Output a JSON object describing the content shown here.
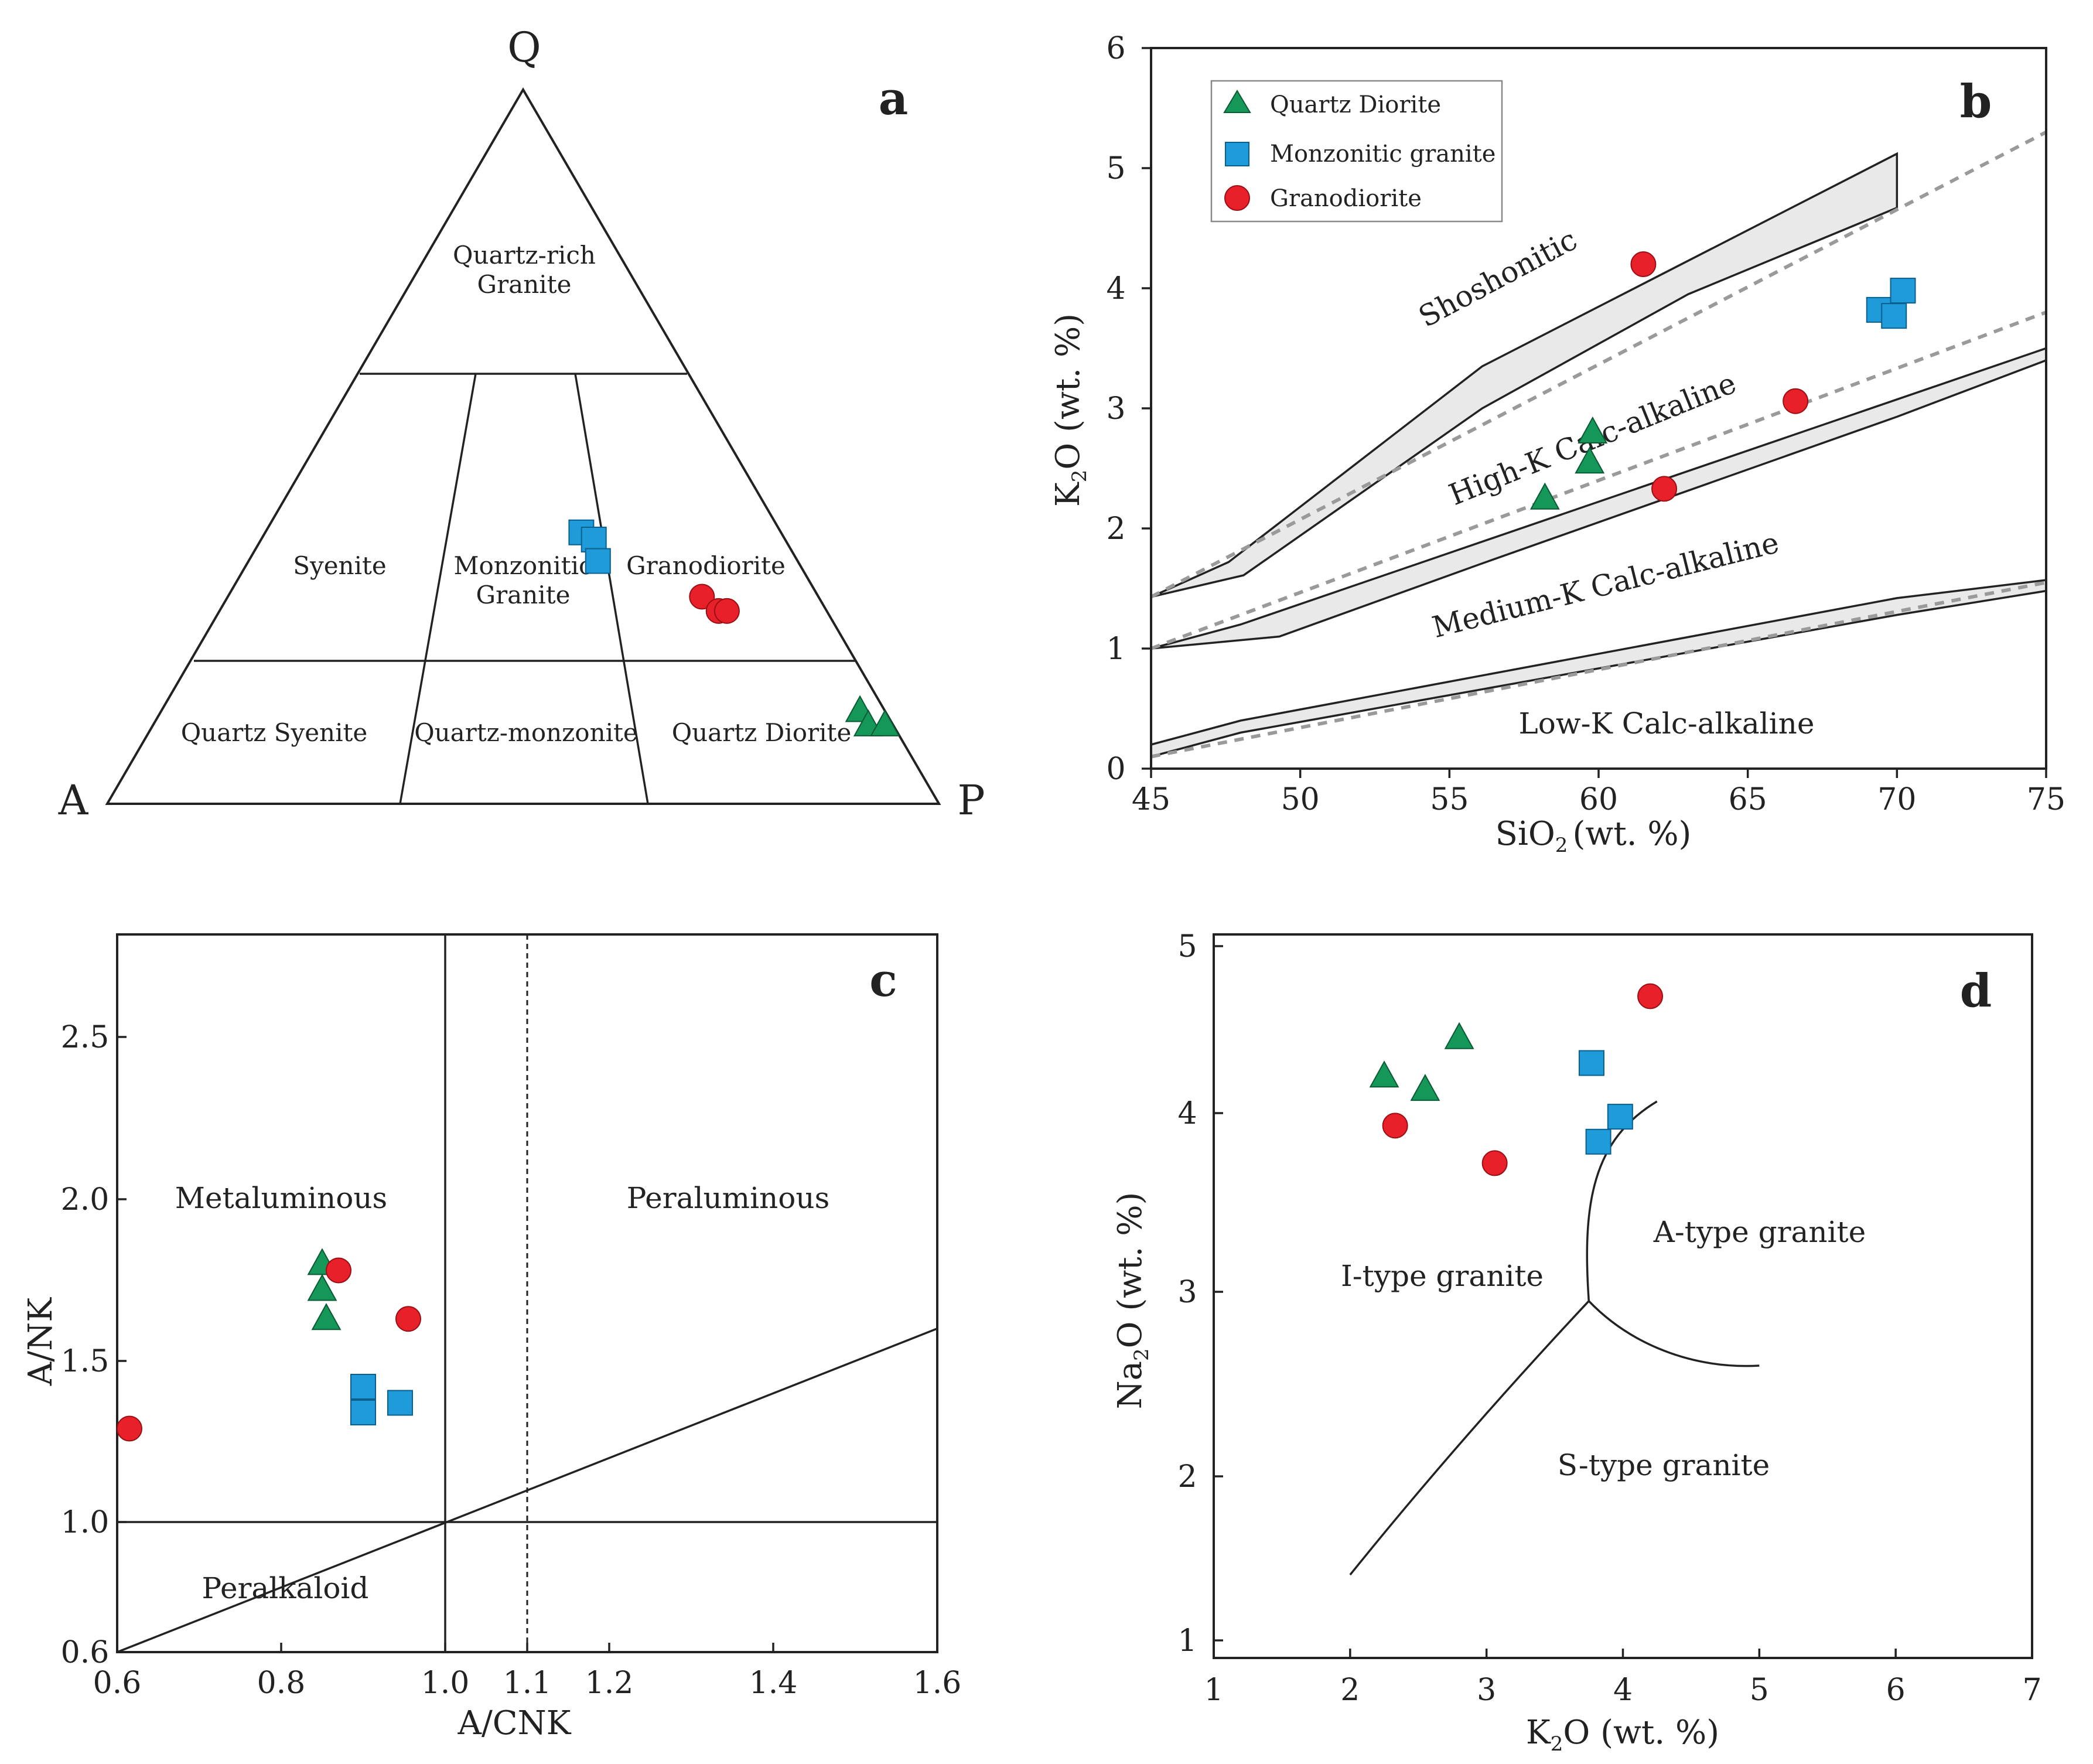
{
  "chart_data": [
    {
      "panel": "a",
      "type": "scatter",
      "subtype": "ternary QAP",
      "vertices": {
        "top": "Q",
        "left": "A",
        "right": "P"
      },
      "fields": [
        "Quartz-rich\nGranite",
        "Syenite",
        "Monzonitic\nGranite",
        "Granodiorite",
        "Quartz Syenite",
        "Quartz-monzonite",
        "Quartz Diorite"
      ],
      "series": [
        {
          "name": "Monzonitic granite",
          "marker": "square",
          "color": "#1e9bd8",
          "points": [
            {
              "q": 38,
              "a": 24,
              "p": 38
            },
            {
              "q": 37,
              "a": 23,
              "p": 40
            },
            {
              "q": 34,
              "a": 24,
              "p": 42
            }
          ]
        },
        {
          "name": "Granodiorite",
          "marker": "circle",
          "color": "#e8202a",
          "points": [
            {
              "q": 29,
              "a": 14,
              "p": 57
            },
            {
              "q": 27,
              "a": 13,
              "p": 60
            },
            {
              "q": 27,
              "a": 12,
              "p": 61
            }
          ]
        },
        {
          "name": "Quartz Diorite",
          "marker": "triangle",
          "color": "#16975a",
          "points": [
            {
              "q": 13,
              "a": 3,
              "p": 84
            },
            {
              "q": 11,
              "a": 3,
              "p": 86
            },
            {
              "q": 11,
              "a": 1,
              "p": 88
            }
          ]
        }
      ]
    },
    {
      "panel": "b",
      "type": "scatter",
      "xlabel": "SiO2 (wt. %)",
      "xlabel_main": "SiO",
      "xlabel_sub": "2",
      "xlabel_unit": "(wt. %)",
      "ylabel": "K2O (wt. %)",
      "ylabel_main": "K",
      "ylabel_sub": "2",
      "ylabel_rest": "O (wt. %)",
      "xlim": [
        45,
        75
      ],
      "ylim": [
        0,
        6
      ],
      "xticks": [
        45,
        50,
        55,
        60,
        65,
        70,
        75
      ],
      "yticks": [
        0,
        1,
        2,
        3,
        4,
        5,
        6
      ],
      "legend": [
        "Quartz Diorite",
        "Monzonitic granite",
        "Granodiorite"
      ],
      "legend_position": "top-left",
      "fields": [
        "Shoshonitic",
        "High-K Calc-alkaline",
        "Medium-K Calc-alkaline",
        "Low-K Calc-alkaline"
      ],
      "series": [
        {
          "name": "Quartz Diorite",
          "marker": "triangle",
          "color": "#16975a",
          "x": [
            58.2,
            59.7,
            59.8
          ],
          "y": [
            2.25,
            2.55,
            2.8
          ]
        },
        {
          "name": "Monzonitic granite",
          "marker": "square",
          "color": "#1e9bd8",
          "x": [
            69.4,
            70.2,
            69.9
          ],
          "y": [
            3.82,
            3.98,
            3.77
          ]
        },
        {
          "name": "Granodiorite",
          "marker": "circle",
          "color": "#e8202a",
          "x": [
            61.5,
            66.6,
            62.2
          ],
          "y": [
            4.2,
            3.06,
            2.33
          ]
        }
      ],
      "boundaries": {
        "shoshonitic_band_upper": {
          "x": [
            45,
            47.6,
            56.1,
            70
          ],
          "y": [
            1.43,
            1.72,
            3.35,
            5.12
          ]
        },
        "shoshonitic_band_lower": {
          "x": [
            45,
            48.1,
            56.1,
            63,
            70
          ],
          "y": [
            1.43,
            1.61,
            3.0,
            3.95,
            4.67
          ]
        },
        "highk_band_upper": {
          "x": [
            45,
            48,
            75
          ],
          "y": [
            1,
            1.2,
            3.5
          ]
        },
        "highk_band_lower": {
          "x": [
            45,
            49.3,
            56,
            70,
            75
          ],
          "y": [
            1,
            1.1,
            1.7,
            2.93,
            3.4
          ]
        },
        "lowk_band_upper": {
          "x": [
            45,
            48,
            70,
            75
          ],
          "y": [
            0.2,
            0.4,
            1.42,
            1.57
          ]
        },
        "lowk_band_lower": {
          "x": [
            45,
            48,
            70,
            75
          ],
          "y": [
            0.1,
            0.3,
            1.28,
            1.48
          ]
        },
        "dashed_upper": {
          "x": [
            45,
            75
          ],
          "y": [
            1.43,
            5.3
          ]
        },
        "dashed_middle": {
          "x": [
            45,
            75
          ],
          "y": [
            1.0,
            3.8
          ]
        },
        "dashed_lower": {
          "x": [
            45,
            75
          ],
          "y": [
            0.1,
            1.55
          ]
        }
      }
    },
    {
      "panel": "c",
      "type": "scatter",
      "xlabel": "A/CNK",
      "ylabel": "A/NK",
      "xlim": [
        0.6,
        1.6
      ],
      "ylim": [
        0.6,
        2.8
      ],
      "xticks": [
        0.6,
        0.8,
        1.0,
        1.1,
        1.2,
        1.4,
        1.6
      ],
      "xtick_labels": [
        "0.6",
        "0.8",
        "1.0",
        "1.1",
        "1.2",
        "1.4",
        "1.6"
      ],
      "yticks": [
        0.6,
        1.0,
        1.5,
        2.0,
        2.5
      ],
      "ytick_labels": [
        "0.6",
        "1.0",
        "1.5",
        "2.0",
        "2.5"
      ],
      "fields": [
        "Metaluminous",
        "Peraluminous",
        "Peralkaloid"
      ],
      "series": [
        {
          "name": "Quartz Diorite",
          "marker": "triangle",
          "color": "#16975a",
          "x": [
            0.85,
            0.85,
            0.855
          ],
          "y": [
            1.8,
            1.72,
            1.63
          ]
        },
        {
          "name": "Monzonitic granite",
          "marker": "square",
          "color": "#1e9bd8",
          "x": [
            0.9,
            0.9,
            0.945
          ],
          "y": [
            1.42,
            1.34,
            1.37
          ]
        },
        {
          "name": "Granodiorite",
          "marker": "circle",
          "color": "#e8202a",
          "x": [
            0.87,
            0.955,
            0.615
          ],
          "y": [
            1.78,
            1.63,
            1.29
          ]
        }
      ],
      "boundaries": {
        "vertical_solid": 1.0,
        "vertical_dashed": 1.1,
        "horizontal": 1.0,
        "diagonal": {
          "x": [
            0.6,
            1.6
          ],
          "y": [
            0.6,
            1.6
          ]
        }
      }
    },
    {
      "panel": "d",
      "type": "scatter",
      "xlabel": "K2O (wt. %)",
      "xlabel_main": "K",
      "xlabel_sub": "2",
      "xlabel_rest": "O (wt. %)",
      "ylabel": "Na2O (wt. %)",
      "ylabel_main": "Na",
      "ylabel_sub": "2",
      "ylabel_rest": "O (wt. %)",
      "xlim": [
        1,
        7
      ],
      "ylim": [
        1,
        5
      ],
      "xticks": [
        1,
        2,
        3,
        4,
        5,
        6,
        7
      ],
      "yticks": [
        1,
        2,
        3,
        4,
        5
      ],
      "fields": [
        "I-type granite",
        "A-type granite",
        "S-type granite"
      ],
      "series": [
        {
          "name": "Quartz Diorite",
          "marker": "triangle",
          "color": "#16975a",
          "x": [
            2.25,
            2.55,
            2.8
          ],
          "y": [
            4.22,
            4.14,
            4.45
          ]
        },
        {
          "name": "Monzonitic granite",
          "marker": "square",
          "color": "#1e9bd8",
          "x": [
            3.77,
            3.82,
            3.98
          ],
          "y": [
            4.3,
            3.84,
            3.98
          ]
        },
        {
          "name": "Granodiorite",
          "marker": "circle",
          "color": "#e8202a",
          "x": [
            2.33,
            3.06,
            4.2
          ],
          "y": [
            3.93,
            3.72,
            4.7
          ]
        }
      ],
      "boundaries": {
        "s_line": {
          "x": [
            2.0,
            2.8,
            3.75
          ],
          "y": [
            1.4,
            2.2,
            2.95
          ]
        },
        "ia_curve": {
          "x": [
            3.75,
            3.7,
            3.78,
            4.25
          ],
          "y": [
            2.95,
            3.5,
            3.85,
            4.07
          ]
        },
        "as_curve": {
          "x": [
            3.75,
            4.05,
            4.5,
            5.0
          ],
          "y": [
            2.95,
            2.72,
            2.58,
            2.6
          ]
        }
      }
    }
  ],
  "panels": {
    "a": {
      "letter": "a"
    },
    "b": {
      "letter": "b"
    },
    "c": {
      "letter": "c"
    },
    "d": {
      "letter": "d"
    }
  },
  "colors": {
    "quartz_diorite": "#16975a",
    "monzonitic_granite": "#1e9bd8",
    "granodiorite": "#e8202a"
  }
}
